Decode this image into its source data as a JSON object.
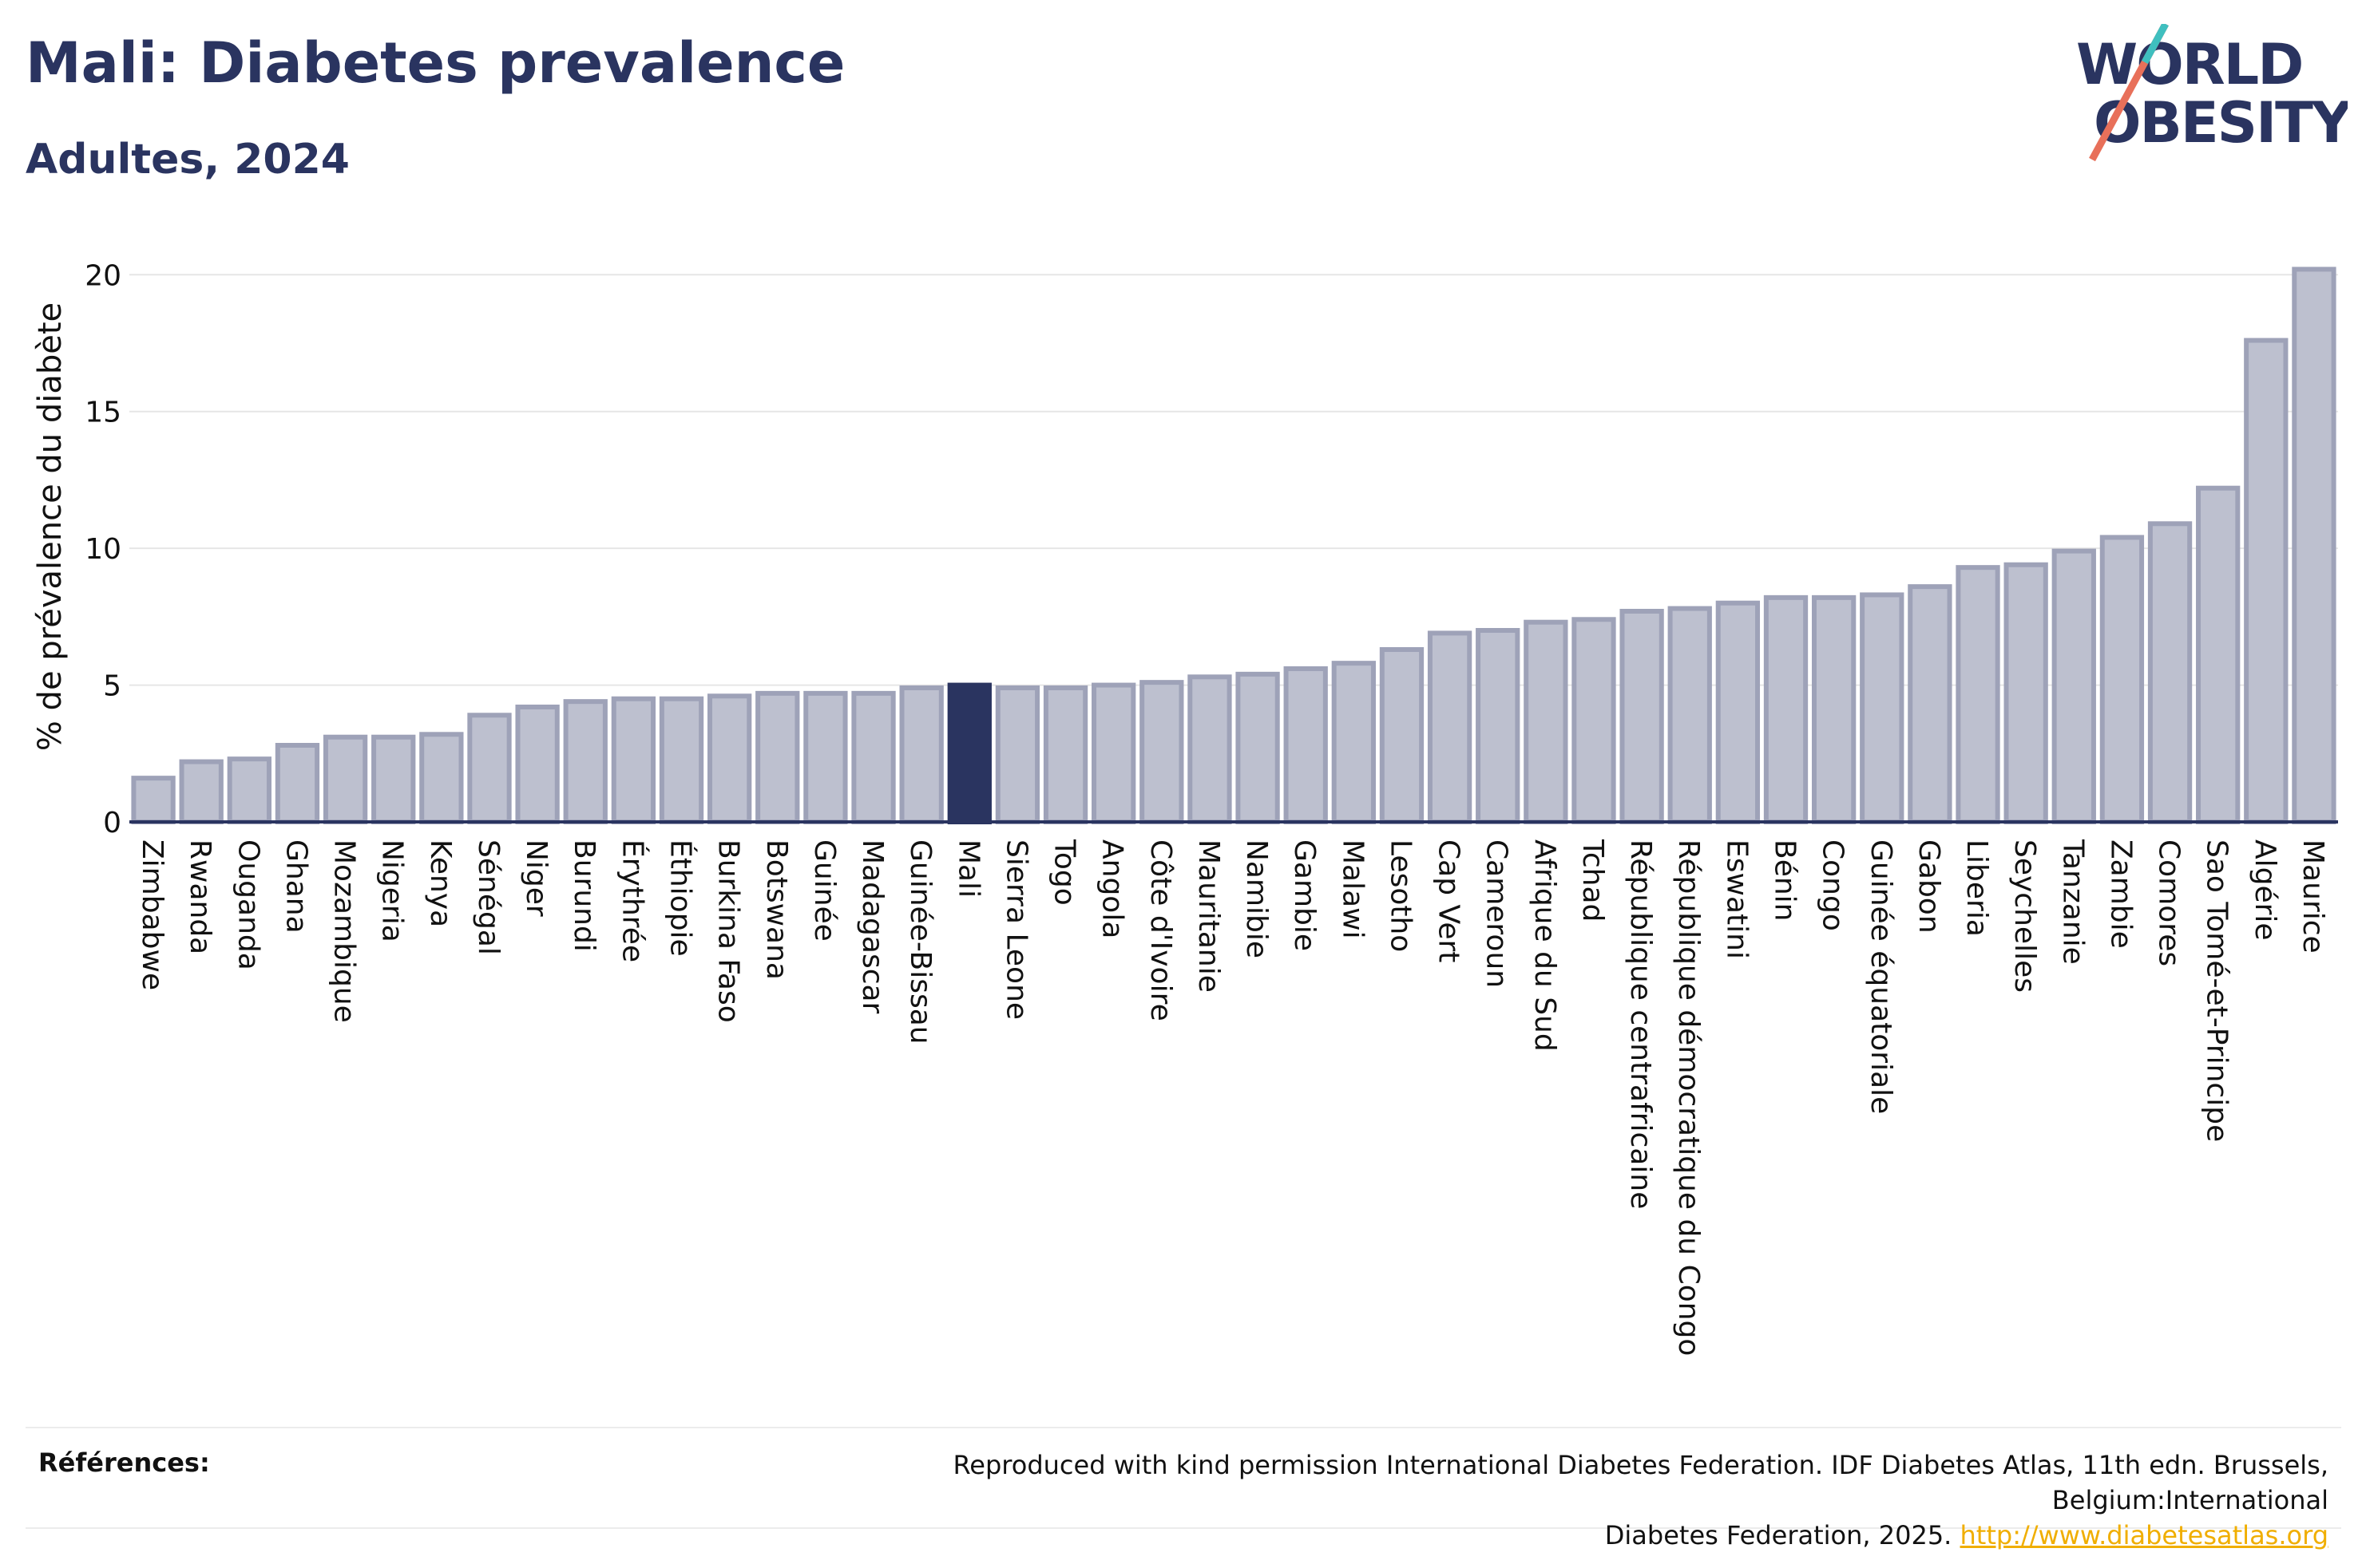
{
  "header": {
    "title": "Mali: Diabetes prevalence",
    "subtitle": "Adultes, 2024"
  },
  "logo": {
    "line1": "WORLD",
    "line2": "OBESITY"
  },
  "chart_data": {
    "type": "bar",
    "ylabel": "% de prévalence du diabète",
    "ylim": [
      0,
      21
    ],
    "yticks": [
      0,
      5,
      10,
      15,
      20
    ],
    "grid": true,
    "highlight": "Mali",
    "colors": {
      "bar": "#bdc0cf",
      "bar_edge": "#9ea2b8",
      "highlight": "#2a3460",
      "axis": "#2a3460",
      "grid": "#e6e6e6"
    },
    "categories": [
      "Zimbabwe",
      "Rwanda",
      "Ouganda",
      "Ghana",
      "Mozambique",
      "Nigeria",
      "Kenya",
      "Sénégal",
      "Niger",
      "Burundi",
      "Érythrée",
      "Éthiopie",
      "Burkina Faso",
      "Botswana",
      "Guinée",
      "Madagascar",
      "Guinée-Bissau",
      "Mali",
      "Sierra Leone",
      "Togo",
      "Angola",
      "Côte d'Ivoire",
      "Mauritanie",
      "Namibie",
      "Gambie",
      "Malawi",
      "Lesotho",
      "Cap Vert",
      "Cameroun",
      "Afrique du Sud",
      "Tchad",
      "République centrafricaine",
      "République démocratique du Congo",
      "Eswatini",
      "Bénin",
      "Congo",
      "Guinée équatoriale",
      "Gabon",
      "Liberia",
      "Seychelles",
      "Tanzanie",
      "Zambie",
      "Comores",
      "Sao Tomé-et-Principe",
      "Algérie",
      "Maurice"
    ],
    "values": [
      1.6,
      2.2,
      2.3,
      2.8,
      3.1,
      3.1,
      3.2,
      3.9,
      4.2,
      4.4,
      4.5,
      4.5,
      4.6,
      4.7,
      4.7,
      4.7,
      4.9,
      5.0,
      4.9,
      4.9,
      5.0,
      5.1,
      5.3,
      5.4,
      5.6,
      5.8,
      6.3,
      6.9,
      7.0,
      7.3,
      7.4,
      7.7,
      7.8,
      8.0,
      8.2,
      8.2,
      8.3,
      8.6,
      9.3,
      9.4,
      9.9,
      10.4,
      10.9,
      12.2,
      17.6,
      20.2
    ]
  },
  "references": {
    "label": "Références:",
    "text_line1": "Reproduced with kind permission International Diabetes Federation. IDF Diabetes Atlas, 11th edn. Brussels, Belgium:International",
    "text_line2": "Diabetes Federation, 2025.",
    "link": "http://www.diabetesatlas.org"
  }
}
